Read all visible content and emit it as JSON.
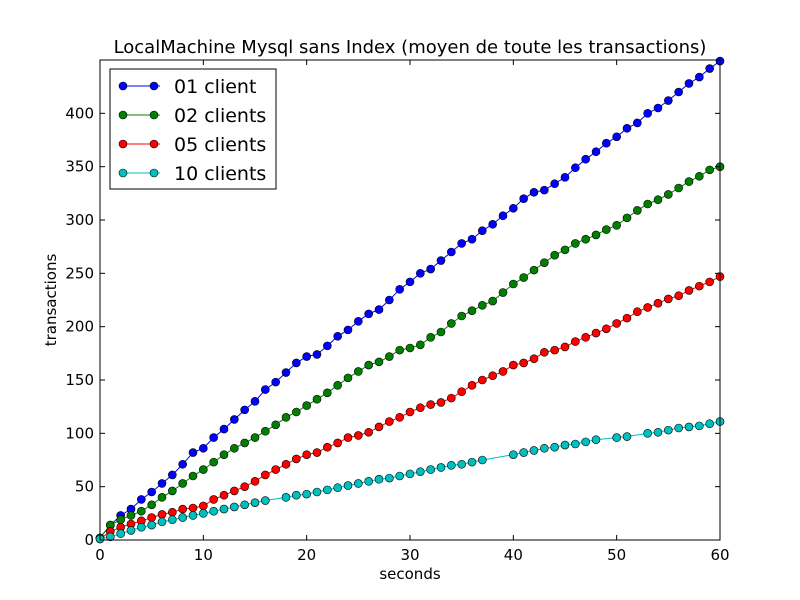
{
  "chart_data": {
    "type": "line",
    "title": "LocalMachine Mysql sans Index (moyen de toute les transactions)",
    "xlabel": "seconds",
    "ylabel": "transactions",
    "xlim": [
      0,
      60
    ],
    "ylim": [
      0,
      450
    ],
    "xticks": [
      0,
      10,
      20,
      30,
      40,
      50,
      60
    ],
    "yticks": [
      0,
      50,
      100,
      150,
      200,
      250,
      300,
      350,
      400
    ],
    "grid": false,
    "legend_position": "top-left",
    "series": [
      {
        "name": "01 client",
        "color": "#0000ff",
        "x": [
          0,
          1,
          2,
          3,
          4,
          5,
          6,
          7,
          8,
          9,
          10,
          11,
          12,
          13,
          14,
          15,
          16,
          17,
          18,
          19,
          20,
          21,
          22,
          23,
          24,
          25,
          26,
          27,
          28,
          29,
          30,
          31,
          32,
          33,
          34,
          35,
          36,
          37,
          38,
          39,
          40,
          41,
          42,
          43,
          44,
          45,
          46,
          47,
          48,
          49,
          50,
          51,
          52,
          53,
          54,
          55,
          56,
          57,
          58,
          59,
          60
        ],
        "values": [
          2,
          14,
          23,
          29,
          38,
          45,
          53,
          61,
          71,
          82,
          86,
          96,
          104,
          113,
          122,
          130,
          141,
          148,
          157,
          166,
          172,
          174,
          182,
          191,
          197,
          205,
          212,
          216,
          225,
          235,
          242,
          250,
          254,
          262,
          270,
          278,
          282,
          290,
          296,
          304,
          311,
          320,
          326,
          328,
          334,
          340,
          349,
          357,
          364,
          372,
          378,
          386,
          391,
          400,
          405,
          412,
          420,
          428,
          434,
          442,
          449
        ]
      },
      {
        "name": "02 clients",
        "color": "#008000",
        "x": [
          0,
          1,
          2,
          3,
          4,
          5,
          6,
          7,
          8,
          9,
          10,
          11,
          12,
          13,
          14,
          15,
          16,
          17,
          18,
          19,
          20,
          21,
          22,
          23,
          24,
          25,
          26,
          27,
          28,
          29,
          30,
          31,
          32,
          33,
          34,
          35,
          36,
          37,
          38,
          39,
          40,
          41,
          42,
          43,
          44,
          45,
          46,
          47,
          48,
          49,
          50,
          51,
          52,
          53,
          54,
          55,
          56,
          57,
          58,
          59,
          60
        ],
        "values": [
          2,
          14,
          19,
          23,
          27,
          33,
          40,
          46,
          53,
          60,
          66,
          73,
          80,
          86,
          91,
          96,
          102,
          108,
          115,
          120,
          126,
          132,
          138,
          145,
          152,
          158,
          164,
          167,
          172,
          178,
          180,
          183,
          190,
          195,
          203,
          210,
          215,
          220,
          224,
          232,
          240,
          246,
          253,
          260,
          267,
          272,
          278,
          282,
          286,
          291,
          295,
          302,
          309,
          315,
          319,
          324,
          330,
          336,
          341,
          347,
          350
        ]
      },
      {
        "name": "05 clients",
        "color": "#ff0000",
        "x": [
          0,
          1,
          2,
          3,
          4,
          5,
          6,
          7,
          8,
          9,
          10,
          11,
          12,
          13,
          14,
          15,
          16,
          17,
          18,
          19,
          20,
          21,
          22,
          23,
          24,
          25,
          26,
          27,
          28,
          29,
          30,
          31,
          32,
          33,
          34,
          35,
          36,
          37,
          38,
          39,
          40,
          41,
          42,
          43,
          44,
          45,
          46,
          47,
          48,
          49,
          50,
          51,
          52,
          53,
          54,
          55,
          56,
          57,
          58,
          59,
          60
        ],
        "values": [
          1,
          8,
          12,
          15,
          18,
          21,
          24,
          26,
          29,
          30,
          32,
          38,
          42,
          46,
          50,
          55,
          61,
          66,
          71,
          76,
          80,
          82,
          87,
          91,
          96,
          98,
          101,
          106,
          111,
          115,
          120,
          124,
          127,
          129,
          133,
          139,
          145,
          150,
          154,
          158,
          164,
          166,
          170,
          176,
          178,
          181,
          186,
          190,
          194,
          198,
          203,
          208,
          214,
          218,
          222,
          226,
          229,
          234,
          238,
          242,
          247
        ]
      },
      {
        "name": "10 clients",
        "color": "#00bfbf",
        "x": [
          0,
          1,
          2,
          3,
          4,
          5,
          6,
          7,
          8,
          9,
          10,
          11,
          12,
          13,
          14,
          15,
          16,
          18,
          19,
          20,
          21,
          22,
          23,
          24,
          25,
          26,
          27,
          28,
          29,
          30,
          31,
          32,
          33,
          34,
          35,
          36,
          37,
          40,
          41,
          42,
          43,
          44,
          45,
          46,
          47,
          48,
          50,
          51,
          53,
          54,
          55,
          56,
          57,
          58,
          59,
          60
        ],
        "values": [
          1,
          3,
          6,
          9,
          12,
          14,
          17,
          19,
          21,
          23,
          25,
          27,
          29,
          31,
          33,
          35,
          37,
          40,
          42,
          43,
          45,
          47,
          49,
          51,
          53,
          55,
          57,
          58,
          60,
          62,
          64,
          66,
          68,
          70,
          71,
          73,
          75,
          80,
          82,
          84,
          86,
          87,
          89,
          90,
          92,
          94,
          96,
          97,
          100,
          101,
          103,
          105,
          106,
          107,
          109,
          111
        ]
      }
    ]
  }
}
